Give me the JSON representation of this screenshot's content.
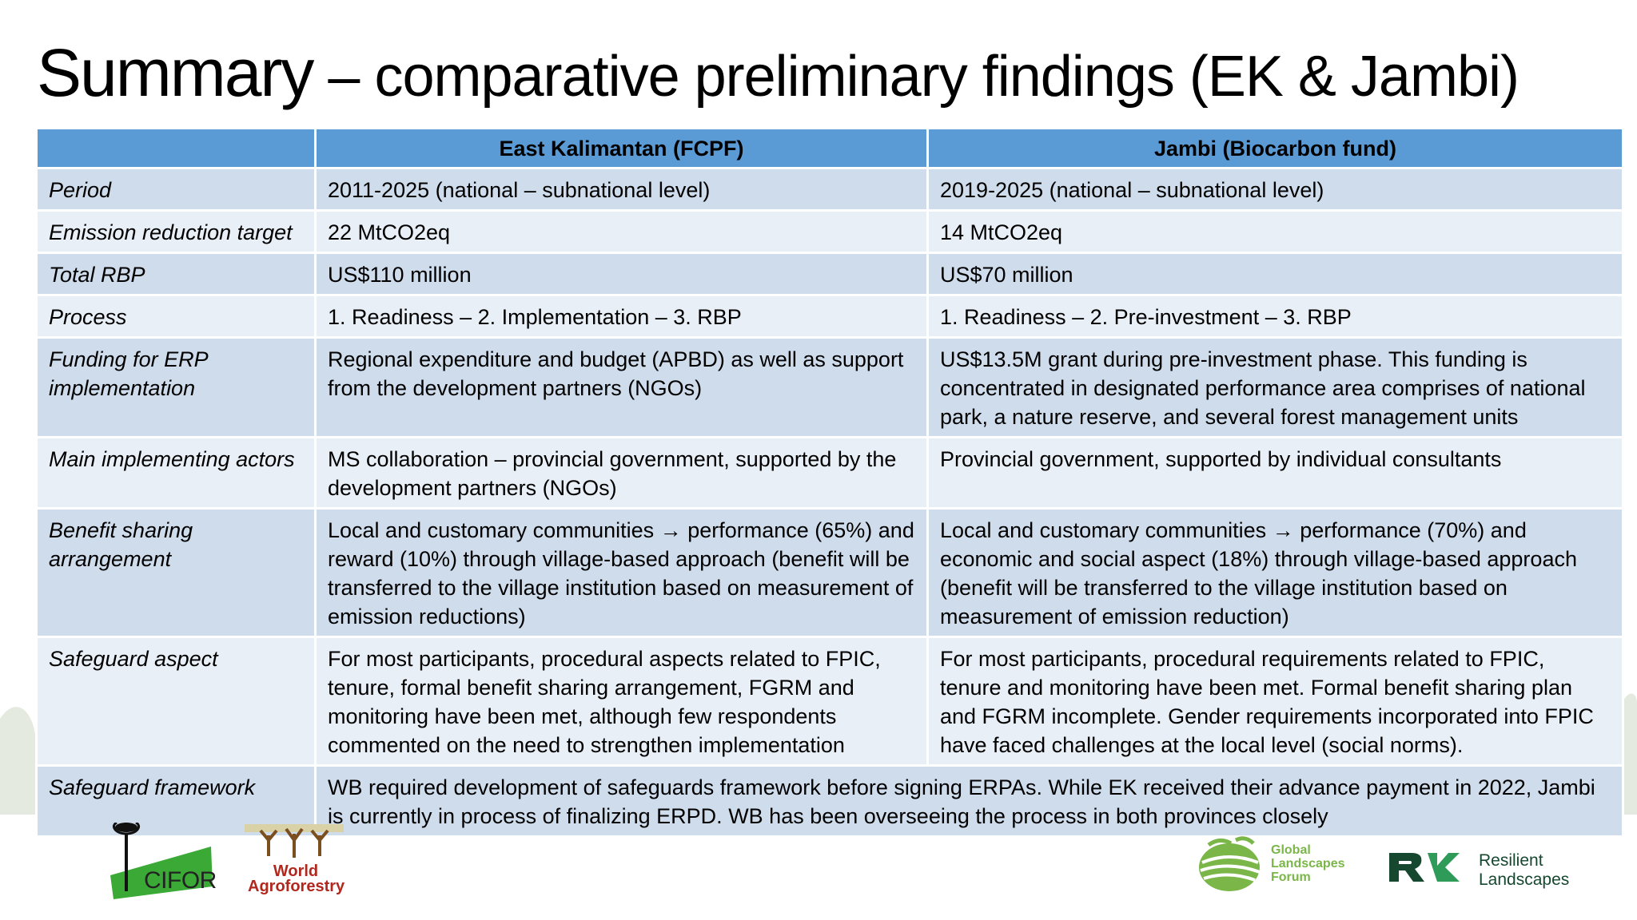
{
  "title": {
    "main": "Summary",
    "rest": " – comparative preliminary findings (EK & Jambi)"
  },
  "table": {
    "headers": [
      "",
      "East Kalimantan (FCPF)",
      "Jambi (Biocarbon fund)"
    ],
    "rows": [
      {
        "label": "Period",
        "ek": "2011-2025 (national – subnational level)",
        "jambi": "2019-2025 (national – subnational level)"
      },
      {
        "label": "Emission reduction target",
        "ek": "22 MtCO2eq",
        "jambi": "14 MtCO2eq"
      },
      {
        "label": "Total RBP",
        "ek": "US$110 million",
        "jambi": "US$70 million"
      },
      {
        "label": "Process",
        "ek": "1. Readiness – 2. Implementation – 3. RBP",
        "jambi": "1. Readiness – 2. Pre-investment – 3. RBP"
      },
      {
        "label": "Funding for ERP implementation",
        "ek": "Regional expenditure and budget (APBD) as well as support from the development partners (NGOs)",
        "jambi": "US$13.5M grant during pre-investment phase. This funding is concentrated in designated performance area comprises of national park, a nature reserve, and several forest management units"
      },
      {
        "label": "Main implementing actors",
        "ek": "MS collaboration – provincial government, supported by the development partners (NGOs)",
        "jambi": "Provincial government, supported by individual consultants"
      },
      {
        "label": "Benefit sharing arrangement",
        "ek_pre": "Local and customary communities ",
        "arrow": "→",
        "ek_post": " performance (65%) and reward (10%) through village-based approach (benefit will be transferred to the village institution based on measurement of emission reductions)",
        "jambi_pre": "Local and customary communities ",
        "jambi_post": " performance (70%) and economic and social aspect (18%) through village-based approach (benefit will be transferred to the village institution based on measurement of emission reduction)"
      },
      {
        "label": "Safeguard aspect",
        "ek": "For most participants, procedural aspects related to FPIC, tenure, formal benefit sharing arrangement, FGRM and monitoring have been met, although few respondents commented on the need to strengthen implementation",
        "jambi": "For most participants, procedural requirements related to FPIC, tenure and monitoring have been met. Formal benefit sharing plan and FGRM incomplete. Gender requirements incorporated into FPIC have faced challenges at the local level (social norms)."
      },
      {
        "label": "Safeguard framework",
        "merged": "WB required development of safeguards framework before signing ERPAs. While EK received their advance payment in 2022, Jambi is currently in process of finalizing ERPD. WB has been overseeing the process in both provinces closely"
      }
    ]
  },
  "logos": {
    "cifor": "CIFOR",
    "icraf_line1": "World",
    "icraf_line2": "Agroforestry",
    "glf_line1": "Global",
    "glf_line2": "Landscapes",
    "glf_line3": "Forum",
    "rl_line1": "Resilient",
    "rl_line2": "Landscapes"
  },
  "colors": {
    "header_blue": "#5b9bd5",
    "row_dark": "#cfdcec",
    "row_light": "#e9eff7",
    "cifor_green": "#3aa935",
    "icraf_red": "#b0281e",
    "glf_green": "#7ab648",
    "rl_green": "#16482f"
  }
}
